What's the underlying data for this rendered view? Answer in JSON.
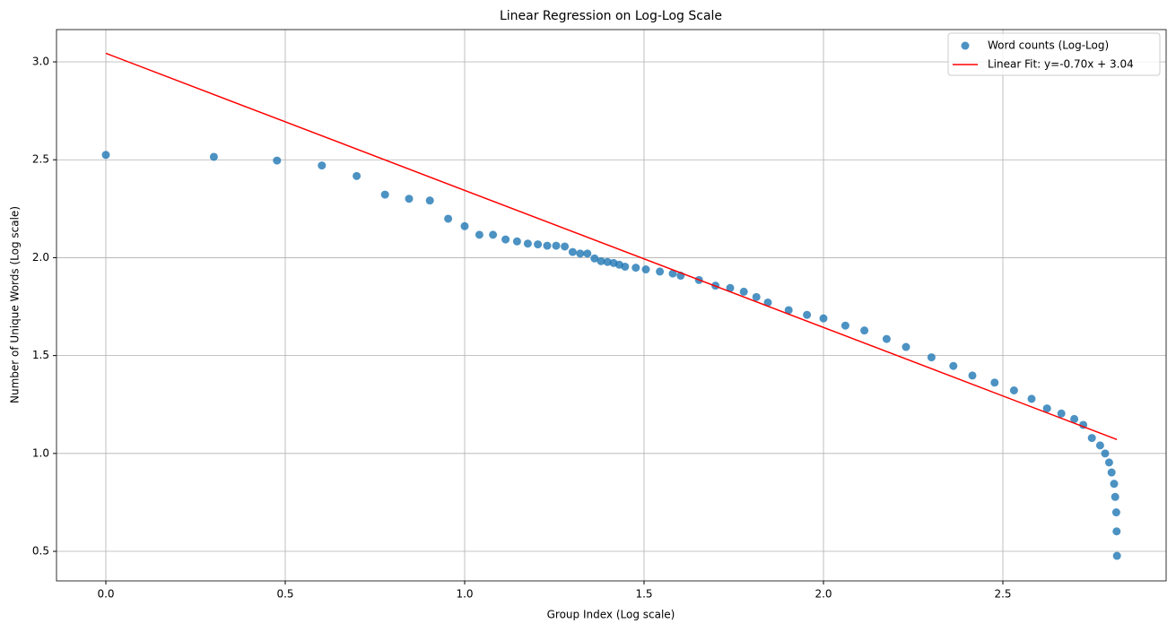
{
  "chart_data": {
    "type": "scatter",
    "title": "Linear Regression on Log-Log Scale",
    "x_label": "Group Index (Log scale)",
    "y_label": "Number of Unique Words (Log scale)",
    "xlim": [
      -0.1375,
      2.955
    ],
    "ylim": [
      0.349,
      3.165
    ],
    "xticks": [
      {
        "value": 0,
        "label": "0.0"
      },
      0.5,
      {
        "value": 1,
        "label": "1.0"
      },
      1.5,
      {
        "value": 2,
        "label": "2.0"
      },
      2.5
    ],
    "yticks": [
      0.5,
      {
        "value": 1,
        "label": "1.0"
      },
      1.5,
      {
        "value": 2,
        "label": "2.0"
      },
      2.5,
      {
        "value": 3,
        "label": "3.0"
      }
    ],
    "grid": true,
    "legend": "upper right",
    "series": [
      {
        "name": "Word counts (Log-Log)",
        "type": "scatter",
        "color": "#1f77b4",
        "x": [
          0,
          0.301,
          0.477,
          0.602,
          0.699,
          0.778,
          0.845,
          0.903,
          0.954,
          1.0,
          1.041,
          1.079,
          1.114,
          1.146,
          1.176,
          1.204,
          1.23,
          1.255,
          1.279,
          1.301,
          1.322,
          1.342,
          1.362,
          1.38,
          1.398,
          1.415,
          1.431,
          1.447,
          1.477,
          1.505,
          1.544,
          1.58,
          1.602,
          1.653,
          1.699,
          1.74,
          1.778,
          1.813,
          1.845,
          1.903,
          1.954,
          2.0,
          2.061,
          2.114,
          2.176,
          2.23,
          2.301,
          2.362,
          2.415,
          2.477,
          2.531,
          2.58,
          2.623,
          2.663,
          2.699,
          2.724,
          2.748,
          2.771,
          2.785,
          2.796,
          2.803,
          2.81,
          2.813,
          2.816,
          2.817,
          2.818
        ],
        "values": [
          2.525,
          2.515,
          2.496,
          2.471,
          2.417,
          2.322,
          2.301,
          2.292,
          2.199,
          2.161,
          2.117,
          2.117,
          2.093,
          2.083,
          2.072,
          2.068,
          2.061,
          2.061,
          2.057,
          2.029,
          2.021,
          2.021,
          1.996,
          1.982,
          1.978,
          1.973,
          1.964,
          1.954,
          1.949,
          1.94,
          1.929,
          1.919,
          1.908,
          1.886,
          1.857,
          1.845,
          1.826,
          1.799,
          1.771,
          1.732,
          1.708,
          1.69,
          1.653,
          1.628,
          1.585,
          1.544,
          1.491,
          1.447,
          1.398,
          1.362,
          1.322,
          1.279,
          1.23,
          1.204,
          1.176,
          1.146,
          1.079,
          1.041,
          1.0,
          0.954,
          0.903,
          0.845,
          0.778,
          0.699,
          0.602,
          0.477
        ]
      },
      {
        "name": "Linear Fit: y=-0.70x + 3.04",
        "type": "line",
        "color": "#ff0000",
        "x": [
          0,
          2.818
        ],
        "values": [
          3.044,
          1.071
        ]
      }
    ]
  }
}
